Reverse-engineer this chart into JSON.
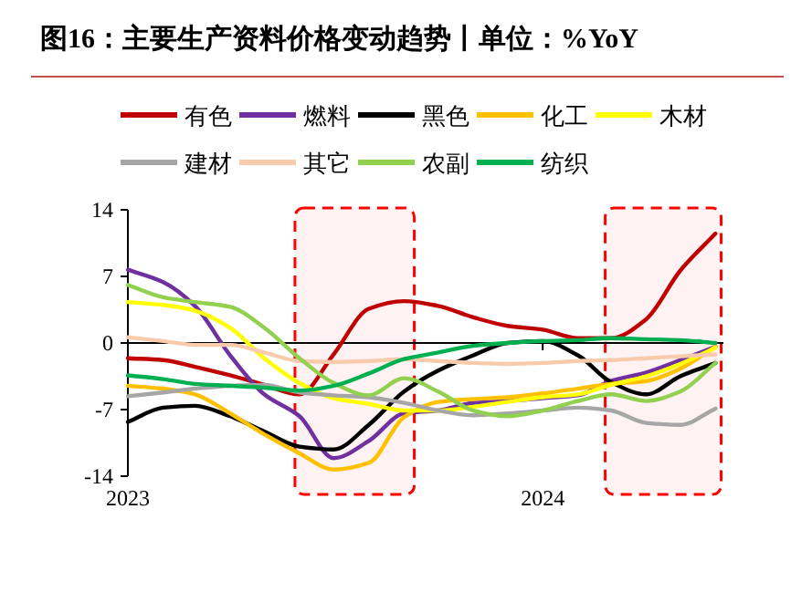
{
  "chart_data": {
    "type": "line",
    "title": "图16：主要生产资料价格变动趋势丨单位：%YoY",
    "x": [
      "2023-01",
      "2023-02",
      "2023-03",
      "2023-04",
      "2023-05",
      "2023-06",
      "2023-07",
      "2023-08",
      "2023-09",
      "2023-10",
      "2023-11",
      "2023-12",
      "2024-01",
      "2024-02",
      "2024-03",
      "2024-04",
      "2024-05",
      "2024-06"
    ],
    "xlim": [
      "2023-01",
      "2024-06-08"
    ],
    "xticks": [
      {
        "value": "2023-01",
        "label": "2023"
      },
      {
        "value": "2024-01",
        "label": "2024"
      }
    ],
    "ylim": [
      -14,
      14
    ],
    "yticks": [
      -14,
      -7,
      0,
      7,
      14
    ],
    "grid": false,
    "legend": "top",
    "marker": "none",
    "line_style": "solid",
    "bands": [
      {
        "axis": "x",
        "from": "2023-05-28",
        "to": "2023-09-10",
        "color": "#ff0000"
      },
      {
        "axis": "x",
        "from": "2024-02-25",
        "to": "2024-06-06",
        "color": "#ff0000"
      }
    ],
    "ref_lines": [
      {
        "axis": "y",
        "value": 0,
        "color": "#000000"
      }
    ],
    "series": [
      {
        "name": "有色",
        "color": "#c00000",
        "values": [
          -1.6,
          -1.8,
          -2.5,
          -3.4,
          -4.4,
          -5.4,
          -1.2,
          3.6,
          4.4,
          3.9,
          2.7,
          1.8,
          1.4,
          0.5,
          0.5,
          2.5,
          7.6,
          11.5
        ]
      },
      {
        "name": "燃料",
        "color": "#7030a0",
        "values": [
          7.7,
          6.4,
          3.9,
          -1.3,
          -5.4,
          -7.7,
          -12.1,
          -10.3,
          -7.4,
          -7.1,
          -6.3,
          -6.1,
          -5.8,
          -5.5,
          -4.0,
          -3.1,
          -1.8,
          -0.4
        ]
      },
      {
        "name": "黑色",
        "color": "#000000",
        "values": [
          -8.3,
          -6.8,
          -6.6,
          -7.7,
          -9.3,
          -10.9,
          -11.2,
          -8.6,
          -5.1,
          -2.9,
          -1.3,
          0,
          0.2,
          -1.3,
          -4.1,
          -5.4,
          -3.5,
          -2.1
        ]
      },
      {
        "name": "化工",
        "color": "#ffc000",
        "values": [
          -4.5,
          -4.8,
          -5.4,
          -7.4,
          -9.6,
          -11.6,
          -13.3,
          -12.6,
          -7.8,
          -6.2,
          -5.9,
          -5.7,
          -5.3,
          -4.8,
          -4.3,
          -4.0,
          -2.7,
          -0.4
        ]
      },
      {
        "name": "木材",
        "color": "#ffff00",
        "values": [
          4.3,
          4.0,
          3.4,
          1.6,
          -1.6,
          -4.2,
          -5.8,
          -6.4,
          -7.1,
          -7.1,
          -6.7,
          -6.2,
          -5.7,
          -5.4,
          -4.4,
          -3.5,
          -2.2,
          -0.5
        ]
      },
      {
        "name": "建材",
        "color": "#a6a6a6",
        "values": [
          -5.6,
          -5.2,
          -4.8,
          -4.5,
          -4.4,
          -5.2,
          -5.5,
          -5.7,
          -6.3,
          -7.1,
          -7.6,
          -7.4,
          -7.1,
          -6.8,
          -7.1,
          -8.4,
          -8.6,
          -6.9
        ]
      },
      {
        "name": "其它",
        "color": "#f8cbad",
        "values": [
          0.6,
          0.2,
          -0.2,
          -0.2,
          -1.0,
          -1.9,
          -2.0,
          -1.9,
          -1.7,
          -1.9,
          -2.1,
          -2.2,
          -2.1,
          -1.9,
          -1.8,
          -1.6,
          -1.4,
          -1.2
        ]
      },
      {
        "name": "农副",
        "color": "#92d050",
        "values": [
          6.1,
          4.8,
          4.3,
          3.8,
          1.6,
          -1.6,
          -4.2,
          -5.5,
          -3.7,
          -5.1,
          -7.1,
          -7.7,
          -7.1,
          -6.1,
          -5.4,
          -6.1,
          -5.1,
          -2.1
        ]
      },
      {
        "name": "纺织",
        "color": "#00b050",
        "values": [
          -3.4,
          -3.8,
          -4.3,
          -4.5,
          -4.7,
          -5.0,
          -4.5,
          -3.2,
          -1.7,
          -1.0,
          -0.3,
          0,
          0.2,
          0.3,
          0.5,
          0.4,
          0.3,
          0
        ]
      }
    ]
  }
}
